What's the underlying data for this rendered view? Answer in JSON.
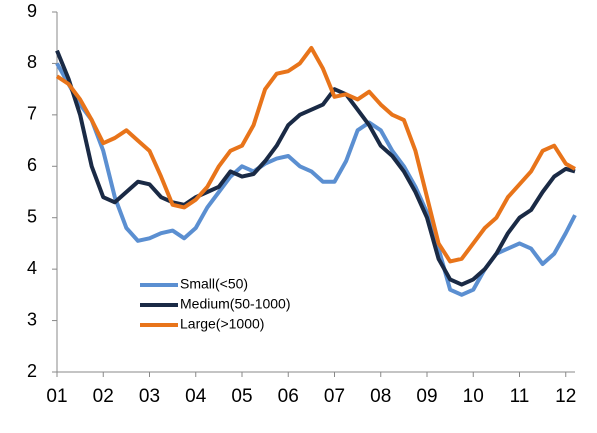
{
  "chart_data": {
    "type": "line",
    "x": [
      1,
      1.25,
      1.5,
      1.75,
      2,
      2.25,
      2.5,
      2.75,
      3,
      3.25,
      3.5,
      3.75,
      4,
      4.25,
      4.5,
      4.75,
      5,
      5.25,
      5.5,
      5.75,
      6,
      6.25,
      6.5,
      6.75,
      7,
      7.25,
      7.5,
      7.75,
      8,
      8.25,
      8.5,
      8.75,
      9,
      9.25,
      9.5,
      9.75,
      10,
      10.25,
      10.5,
      10.75,
      11,
      11.25,
      11.5,
      11.75,
      12,
      12.2
    ],
    "series": [
      {
        "name": "Small(<50)",
        "color": "#5b8fd1",
        "values": [
          8.0,
          7.6,
          7.2,
          6.9,
          6.3,
          5.4,
          4.8,
          4.55,
          4.6,
          4.7,
          4.75,
          4.6,
          4.8,
          5.2,
          5.5,
          5.8,
          6.0,
          5.9,
          6.05,
          6.15,
          6.2,
          6.0,
          5.9,
          5.7,
          5.7,
          6.1,
          6.7,
          6.85,
          6.7,
          6.3,
          6.0,
          5.6,
          5.1,
          4.4,
          3.6,
          3.5,
          3.6,
          4.0,
          4.3,
          4.4,
          4.5,
          4.4,
          4.1,
          4.3,
          4.7,
          5.05
        ]
      },
      {
        "name": "Medium(50-1000)",
        "color": "#1a2a45",
        "values": [
          8.25,
          7.7,
          7.0,
          6.0,
          5.4,
          5.3,
          5.5,
          5.7,
          5.65,
          5.4,
          5.3,
          5.25,
          5.4,
          5.5,
          5.6,
          5.9,
          5.8,
          5.85,
          6.1,
          6.4,
          6.8,
          7.0,
          7.1,
          7.2,
          7.5,
          7.4,
          7.1,
          6.8,
          6.4,
          6.2,
          5.9,
          5.5,
          5.0,
          4.2,
          3.8,
          3.7,
          3.8,
          4.0,
          4.3,
          4.7,
          5.0,
          5.15,
          5.5,
          5.8,
          5.95,
          5.9
        ]
      },
      {
        "name": "Large(>1000)",
        "color": "#e8741a",
        "values": [
          7.75,
          7.6,
          7.3,
          6.9,
          6.45,
          6.55,
          6.7,
          6.5,
          6.3,
          5.8,
          5.25,
          5.2,
          5.35,
          5.6,
          6.0,
          6.3,
          6.4,
          6.8,
          7.5,
          7.8,
          7.85,
          8.0,
          8.3,
          7.9,
          7.35,
          7.4,
          7.3,
          7.45,
          7.2,
          7.0,
          6.9,
          6.3,
          5.4,
          4.5,
          4.15,
          4.2,
          4.5,
          4.8,
          5.0,
          5.4,
          5.65,
          5.9,
          6.3,
          6.4,
          6.05,
          5.95
        ]
      }
    ],
    "xlim": [
      1,
      12.2
    ],
    "xticks": [
      {
        "value": 1,
        "label": "01"
      },
      {
        "value": 2,
        "label": "02"
      },
      {
        "value": 3,
        "label": "03"
      },
      {
        "value": 4,
        "label": "04"
      },
      {
        "value": 5,
        "label": "05"
      },
      {
        "value": 6,
        "label": "06"
      },
      {
        "value": 7,
        "label": "07"
      },
      {
        "value": 8,
        "label": "08"
      },
      {
        "value": 9,
        "label": "09"
      },
      {
        "value": 10,
        "label": "10"
      },
      {
        "value": 11,
        "label": "11"
      },
      {
        "value": 12,
        "label": "12"
      }
    ],
    "ylim": [
      2,
      9
    ],
    "yticks": [
      2,
      3,
      4,
      5,
      6,
      7,
      8,
      9
    ],
    "grid": false,
    "legend": "lower-left"
  }
}
